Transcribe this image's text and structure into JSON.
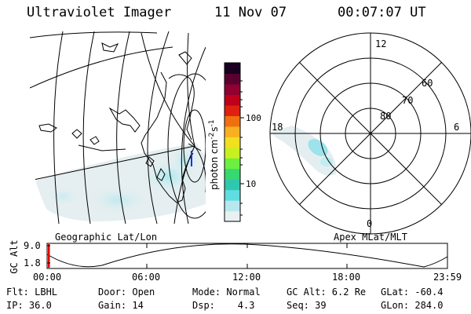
{
  "header": {
    "title": "Ultraviolet Imager",
    "date": "11 Nov 07",
    "time": "00:07:07 UT"
  },
  "geo_panel": {
    "label": "Geographic Lat/Lon"
  },
  "polar_panel": {
    "label": "Apex MLat/MLT",
    "lat_labels": [
      "60",
      "70",
      "80"
    ],
    "mlt_labels": [
      "12",
      "18",
      "6",
      "0"
    ]
  },
  "colorbar": {
    "unit_label": "photon cm",
    "unit_sup1": "-2",
    "unit_mid": "s",
    "unit_sup2": "-1",
    "ticks": [
      "100",
      "10"
    ],
    "colors": [
      "#e8f0f2",
      "#b8e8ee",
      "#60dde0",
      "#2ec8b0",
      "#36d870",
      "#6cf040",
      "#c8f020",
      "#f0e020",
      "#f8b020",
      "#f07010",
      "#e02010",
      "#c0001a",
      "#900030",
      "#5a0030",
      "#1a0020"
    ]
  },
  "timeline": {
    "y_label": "GC Alt",
    "y_ticks": [
      "9.0",
      "1.8"
    ],
    "x_ticks": [
      "00:00",
      "06:00",
      "12:00",
      "18:00",
      "23:59"
    ],
    "marker_color": "#e00000"
  },
  "info": {
    "row1": [
      "Flt: LBHL",
      "Door: Open",
      "Mode: Normal",
      "GC Alt: 6.2 Re",
      "GLat: -60.4"
    ],
    "row2": [
      "IP: 36.0",
      "Gain: 14",
      "Dsp:    4.3",
      "Seq: 39",
      "GLon: 284.0"
    ]
  }
}
